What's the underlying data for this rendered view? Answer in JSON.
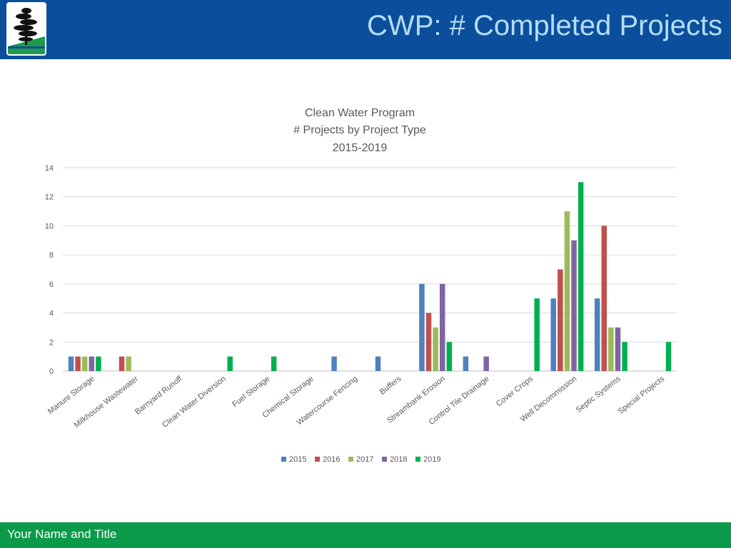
{
  "header": {
    "title": "CWP: # Completed Projects",
    "logo_icon": "pine-tree-logo-icon",
    "background": "#0b4f9c",
    "title_color": "#b5dcf5"
  },
  "footer": {
    "text": "Your Name and Title",
    "background": "#0a9a4a"
  },
  "chart_data": {
    "type": "bar",
    "title_lines": [
      "Clean Water Program",
      "# Projects by Project Type",
      "2015-2019"
    ],
    "categories": [
      "Manure Storage",
      "Milkhouse Wastewater",
      "Barnyard Runoff",
      "Clean Water Diversion",
      "Fuel Storage",
      "Chemical Storage",
      "Watercourse Fencing",
      "Buffers",
      "Streambank Erosion",
      "Control Tile Drainage",
      "Cover Crops",
      "Well Decommission",
      "Septic Systems",
      "Special Projects"
    ],
    "series": [
      {
        "name": "2015",
        "color": "#4f81bd",
        "values": [
          1,
          0,
          0,
          0,
          0,
          0,
          1,
          1,
          6,
          1,
          0,
          5,
          5,
          0
        ]
      },
      {
        "name": "2016",
        "color": "#c0504d",
        "values": [
          1,
          1,
          0,
          0,
          0,
          0,
          0,
          0,
          4,
          0,
          0,
          7,
          10,
          0
        ]
      },
      {
        "name": "2017",
        "color": "#9bbb59",
        "values": [
          1,
          1,
          0,
          0,
          0,
          0,
          0,
          0,
          3,
          0,
          0,
          11,
          3,
          0
        ]
      },
      {
        "name": "2018",
        "color": "#8064a2",
        "values": [
          1,
          0,
          0,
          0,
          0,
          0,
          0,
          0,
          6,
          1,
          0,
          9,
          3,
          0
        ]
      },
      {
        "name": "2019",
        "color": "#00b050",
        "values": [
          1,
          0,
          0,
          1,
          1,
          0,
          0,
          0,
          2,
          0,
          5,
          13,
          2,
          2
        ]
      }
    ],
    "y_ticks": [
      "0",
      "2",
      "4",
      "6",
      "8",
      "10",
      "12",
      "14"
    ],
    "ylim": [
      0,
      14
    ],
    "grid": true,
    "legend_position": "bottom"
  }
}
